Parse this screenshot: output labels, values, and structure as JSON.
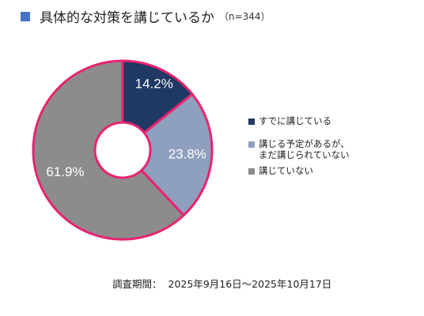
{
  "header": {
    "title": "具体的な対策を講じているか",
    "subtitle": "（n=344）",
    "marker_color": "#4472C4"
  },
  "chart_data": {
    "type": "pie",
    "variant": "donut",
    "title": "具体的な対策を講じているか",
    "n": 344,
    "start_angle_deg": 0,
    "direction": "clockwise",
    "slices": [
      {
        "label": "すでに講じている",
        "value": 14.2,
        "display": "14.2%",
        "color": "#1F3864",
        "label_color": "#FFFFFF",
        "highlighted": true
      },
      {
        "label": "講じる予定があるが、\nまだ講じられていない",
        "value": 23.8,
        "display": "23.8%",
        "color": "#8EA0BD",
        "label_color": "#FFFFFF",
        "highlighted": true
      },
      {
        "label": "講じていない",
        "value": 61.9,
        "display": "61.9%",
        "color": "#8C8C8C",
        "label_color": "#FFFFFF",
        "highlighted": true
      }
    ],
    "highlight_color": "#E8246F",
    "legend_position": "right"
  },
  "footer": {
    "period_label": "調査期間：",
    "period_value": "2025年9月16日～2025年10月17日"
  }
}
